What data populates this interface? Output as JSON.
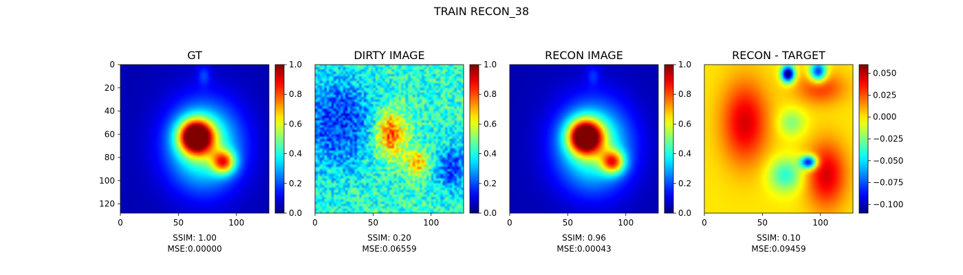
{
  "figure_title": "TRAIN RECON_38",
  "colormap": "jet",
  "chart_data": [
    {
      "type": "heatmap",
      "title": "GT",
      "grid_size": [
        128,
        128
      ],
      "x_ticks": [
        0,
        50,
        100
      ],
      "y_ticks": [
        0,
        20,
        40,
        60,
        80,
        100,
        120
      ],
      "colorbar": {
        "range": [
          0.0,
          1.0
        ],
        "ticks": [
          "0.0",
          "0.2",
          "0.4",
          "0.6",
          "0.8",
          "1.0"
        ]
      },
      "features": {
        "background": 0.05,
        "blobs": [
          {
            "cx": 65,
            "cy": 62,
            "sx": 10,
            "sy": 10,
            "amp": 0.95
          },
          {
            "cx": 89,
            "cy": 84,
            "sx": 7,
            "sy": 7,
            "amp": 0.55
          },
          {
            "cx": 72,
            "cy": 70,
            "sx": 22,
            "sy": 26,
            "amp": 0.45
          },
          {
            "cx": 72,
            "cy": 9,
            "sx": 4,
            "sy": 6,
            "amp": 0.12
          }
        ]
      },
      "ssim_label": "SSIM: 1.00",
      "mse_label": "MSE:0.00000"
    },
    {
      "type": "heatmap",
      "title": "DIRTY IMAGE",
      "grid_size": [
        128,
        128
      ],
      "x_ticks": [
        0,
        50,
        100
      ],
      "colorbar": {
        "range": [
          0.0,
          1.0
        ],
        "ticks": [
          "0.0",
          "0.2",
          "0.4",
          "0.6",
          "0.8",
          "1.0"
        ]
      },
      "features": {
        "background": 0.42,
        "noise": 0.12,
        "blobs": [
          {
            "cx": 65,
            "cy": 60,
            "sx": 9,
            "sy": 14,
            "amp": 0.4
          },
          {
            "cx": 88,
            "cy": 85,
            "sx": 7,
            "sy": 8,
            "amp": 0.3
          },
          {
            "cx": 20,
            "cy": 50,
            "sx": 22,
            "sy": 28,
            "amp": -0.25
          },
          {
            "cx": 118,
            "cy": 90,
            "sx": 10,
            "sy": 15,
            "amp": -0.22
          }
        ]
      },
      "ssim_label": "SSIM: 0.20",
      "mse_label": "MSE:0.06559"
    },
    {
      "type": "heatmap",
      "title": "RECON IMAGE",
      "grid_size": [
        128,
        128
      ],
      "x_ticks": [
        0,
        50,
        100
      ],
      "colorbar": {
        "range": [
          0.0,
          1.0
        ],
        "ticks": [
          "0.0",
          "0.2",
          "0.4",
          "0.6",
          "0.8",
          "1.0"
        ]
      },
      "features": {
        "background": 0.05,
        "blobs": [
          {
            "cx": 65,
            "cy": 62,
            "sx": 10,
            "sy": 10,
            "amp": 0.92
          },
          {
            "cx": 89,
            "cy": 84,
            "sx": 7,
            "sy": 7,
            "amp": 0.55
          },
          {
            "cx": 72,
            "cy": 70,
            "sx": 22,
            "sy": 26,
            "amp": 0.45
          },
          {
            "cx": 72,
            "cy": 9,
            "sx": 4,
            "sy": 6,
            "amp": 0.1
          }
        ]
      },
      "ssim_label": "SSIM: 0.96",
      "mse_label": "MSE:0.00043"
    },
    {
      "type": "heatmap",
      "title": "RECON - TARGET",
      "grid_size": [
        128,
        128
      ],
      "x_ticks": [
        0,
        50,
        100
      ],
      "colorbar": {
        "range": [
          -0.11,
          0.06
        ],
        "ticks": [
          "−0.100",
          "−0.075",
          "−0.050",
          "−0.025",
          "0.000",
          "0.025",
          "0.050"
        ]
      },
      "features": {
        "background": 0.0,
        "blobs": [
          {
            "cx": 35,
            "cy": 50,
            "sx": 14,
            "sy": 25,
            "amp": 0.045
          },
          {
            "cx": 105,
            "cy": 95,
            "sx": 12,
            "sy": 20,
            "amp": 0.045
          },
          {
            "cx": 100,
            "cy": 20,
            "sx": 15,
            "sy": 10,
            "amp": 0.03
          },
          {
            "cx": 72,
            "cy": 8,
            "sx": 4,
            "sy": 5,
            "amp": -0.12
          },
          {
            "cx": 98,
            "cy": 6,
            "sx": 5,
            "sy": 6,
            "amp": -0.09
          },
          {
            "cx": 90,
            "cy": 84,
            "sx": 5,
            "sy": 4,
            "amp": -0.1
          },
          {
            "cx": 70,
            "cy": 95,
            "sx": 10,
            "sy": 10,
            "amp": -0.04
          },
          {
            "cx": 75,
            "cy": 50,
            "sx": 8,
            "sy": 8,
            "amp": -0.025
          }
        ]
      },
      "ssim_label": "SSIM: 0.10",
      "mse_label": "MSE:0.09459"
    }
  ]
}
